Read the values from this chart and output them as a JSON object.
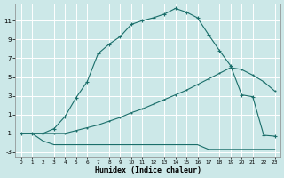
{
  "xlabel": "Humidex (Indice chaleur)",
  "bg_color": "#cce8e8",
  "grid_color": "#ffffff",
  "line_color": "#1a6e6a",
  "xlim": [
    -0.5,
    23.5
  ],
  "ylim": [
    -3.5,
    12.8
  ],
  "xticks": [
    0,
    1,
    2,
    3,
    4,
    5,
    6,
    7,
    8,
    9,
    10,
    11,
    12,
    13,
    14,
    15,
    16,
    17,
    18,
    19,
    20,
    21,
    22,
    23
  ],
  "yticks": [
    -3,
    -1,
    1,
    3,
    5,
    7,
    9,
    11
  ],
  "series1_x": [
    0,
    1,
    2,
    3,
    4,
    5,
    6,
    7,
    8,
    9,
    10,
    11,
    12,
    13,
    14,
    15,
    16,
    17,
    18,
    19,
    20,
    21,
    22,
    23
  ],
  "series1_y": [
    -1.0,
    -1.0,
    -1.8,
    -2.2,
    -2.2,
    -2.2,
    -2.2,
    -2.2,
    -2.2,
    -2.2,
    -2.2,
    -2.2,
    -2.2,
    -2.2,
    -2.2,
    -2.2,
    -2.2,
    -2.7,
    -2.7,
    -2.7,
    -2.7,
    -2.7,
    -2.7,
    -2.7
  ],
  "series2_x": [
    0,
    1,
    2,
    3,
    4,
    5,
    6,
    7,
    8,
    9,
    10,
    11,
    12,
    13,
    14,
    15,
    16,
    17,
    18,
    19,
    20,
    21,
    22,
    23
  ],
  "series2_y": [
    -1.0,
    -1.0,
    -1.0,
    -1.0,
    -1.0,
    -0.7,
    -0.4,
    -0.1,
    0.3,
    0.7,
    1.2,
    1.6,
    2.1,
    2.6,
    3.1,
    3.6,
    4.2,
    4.8,
    5.4,
    6.0,
    5.8,
    5.2,
    4.5,
    3.5
  ],
  "series3_x": [
    0,
    1,
    2,
    3,
    4,
    5,
    6,
    7,
    8,
    9,
    10,
    11,
    12,
    13,
    14,
    15,
    16,
    17,
    18,
    19,
    20,
    21,
    22,
    23
  ],
  "series3_y": [
    -1.0,
    -1.0,
    -1.0,
    -0.5,
    0.8,
    2.8,
    4.5,
    7.5,
    8.5,
    9.3,
    10.6,
    11.0,
    11.3,
    11.7,
    12.3,
    11.9,
    11.3,
    9.5,
    7.8,
    6.2,
    3.1,
    2.9,
    -1.2,
    -1.3
  ]
}
